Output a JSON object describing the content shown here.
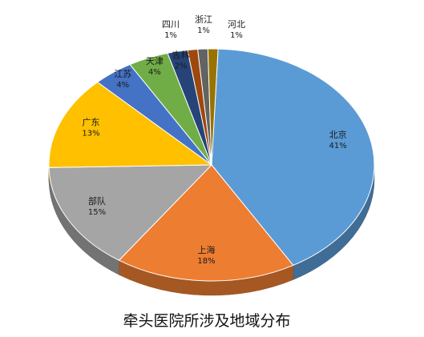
{
  "chart_data": {
    "type": "pie",
    "title": "牵头医院所涉及地域分布",
    "categories": [
      "北京",
      "上海",
      "部队",
      "广东",
      "江苏",
      "天津",
      "吉林",
      "四川",
      "浙江",
      "河北"
    ],
    "values": [
      41,
      18,
      15,
      13,
      4,
      4,
      2,
      1,
      1,
      1
    ],
    "labels": [
      "41%",
      "18%",
      "15%",
      "13%",
      "4%",
      "4%",
      "2%",
      "1%",
      "1%",
      "1%"
    ],
    "colors": [
      "#5b9bd5",
      "#ed7d31",
      "#a5a5a5",
      "#ffc000",
      "#4472c4",
      "#70ad47",
      "#264478",
      "#9e480e",
      "#636363",
      "#997300"
    ],
    "legend": "none"
  }
}
